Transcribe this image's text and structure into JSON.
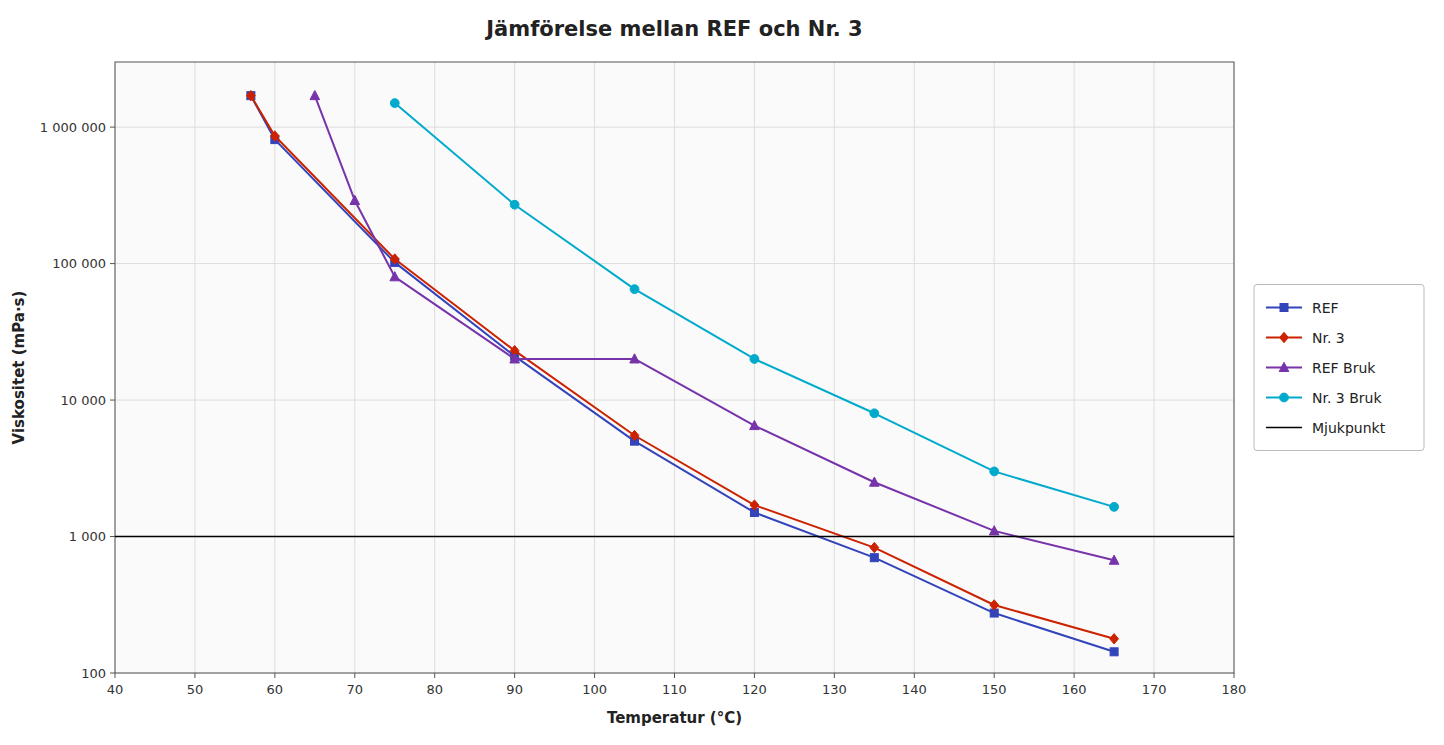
{
  "chart_data": {
    "type": "line",
    "title": "Jämförelse mellan REF och Nr. 3",
    "x_label": "Temperatur (°C)",
    "y_label": "Viskositet (mPa·s)",
    "log": "y",
    "grid": true,
    "legend": "right",
    "xlim": [
      40,
      180
    ],
    "xticks": [
      40,
      50,
      60,
      70,
      80,
      90,
      100,
      110,
      120,
      130,
      140,
      150,
      160,
      170,
      180
    ],
    "ylim": [
      100,
      3000000
    ],
    "yticks": [
      100,
      {
        "value": 1000,
        "label": "1 000"
      },
      {
        "value": 10000,
        "label": "10 000"
      },
      {
        "value": 100000,
        "label": "100 000"
      },
      {
        "value": 1000000,
        "label": "1 000 000"
      }
    ],
    "series": [
      {
        "name": "REF",
        "color": "#3344BB",
        "marker": "square",
        "x": [
          57,
          60,
          75,
          90,
          105,
          120,
          135,
          150,
          165
        ],
        "values": [
          1700000,
          810000,
          102000,
          21000,
          5000,
          1500,
          700,
          275,
          143
        ]
      },
      {
        "name": "Nr. 3",
        "color": "#CC2200",
        "marker": "diamond",
        "x": [
          57,
          60,
          75,
          90,
          105,
          120,
          135,
          150,
          165
        ],
        "values": [
          1700000,
          860000,
          108000,
          23000,
          5500,
          1700,
          830,
          315,
          178
        ]
      },
      {
        "name": "REF Bruk",
        "color": "#7733AA",
        "marker": "triangle",
        "x": [
          65,
          70,
          75,
          90,
          105,
          120,
          135,
          150,
          165
        ],
        "values": [
          1700000,
          290000,
          80000,
          20000,
          20000,
          6500,
          2500,
          1100,
          670
        ]
      },
      {
        "name": "Nr. 3 Bruk",
        "color": "#00AACC",
        "marker": "circle",
        "x": [
          75,
          90,
          105,
          120,
          135,
          150,
          165
        ],
        "values": [
          1500000,
          270000,
          65000,
          20000,
          8000,
          3000,
          1650
        ]
      },
      {
        "name": "Mjukpunkt",
        "type": "hline",
        "color": "#000000",
        "values": [
          1000
        ]
      }
    ]
  }
}
